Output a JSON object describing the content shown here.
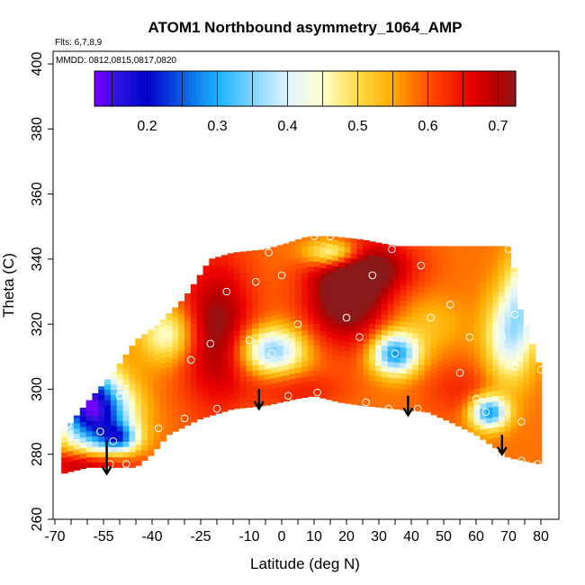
{
  "chart_data": {
    "type": "heatmap",
    "title": "ATOM1 Northbound asymmetry_1064_AMP",
    "subtitle_flights": "Flts: 6,7,8,9",
    "subtitle_dates": "MMDD: 0812,0815,0817,0820",
    "xlabel": "Latitude (deg N)",
    "ylabel": "Theta (C)",
    "xlim": [
      -72,
      85
    ],
    "ylim": [
      260,
      404
    ],
    "x_ticks": [
      -70,
      -55,
      -40,
      -25,
      -10,
      0,
      10,
      20,
      30,
      40,
      50,
      60,
      70,
      80
    ],
    "x_ticks_visible": [
      -70,
      -55,
      -40,
      -25,
      -10,
      0,
      10,
      20,
      30,
      40,
      50,
      60,
      70,
      80
    ],
    "x_minor_ticks": [
      -70,
      -65,
      -60,
      -55,
      -50,
      -45,
      -40,
      -35,
      -30,
      -25,
      -20,
      -15,
      -10,
      -5,
      0,
      5,
      10,
      15,
      20,
      25,
      30,
      35,
      40,
      45,
      50,
      55,
      60,
      65,
      70,
      75,
      80
    ],
    "y_ticks": [
      260,
      280,
      300,
      320,
      340,
      360,
      380,
      400
    ],
    "colorbar": {
      "range": [
        0.125,
        0.725
      ],
      "ticks": [
        0.2,
        0.3,
        0.4,
        0.5,
        0.6,
        0.7
      ],
      "tick_labels": [
        "0.2",
        "0.3",
        "0.4",
        "0.5",
        "0.6",
        "0.7"
      ],
      "segments": [
        0.2,
        0.3,
        0.4,
        0.5,
        0.6,
        0.7
      ],
      "colors": [
        "#7a00ff",
        "#1515c8",
        "#0000cc",
        "#0f6fe6",
        "#1ab2ff",
        "#7fd4ff",
        "#dff2ff",
        "#ffffcc",
        "#ffdd44",
        "#ffaa00",
        "#ff5500",
        "#ee0000",
        "#b20000",
        "#8a1a1a"
      ]
    },
    "region": {
      "top_boundary": [
        [
          -68,
          286
        ],
        [
          -60,
          296
        ],
        [
          -52,
          305
        ],
        [
          -45,
          315
        ],
        [
          -38,
          320
        ],
        [
          -30,
          328
        ],
        [
          -22,
          340
        ],
        [
          -15,
          342
        ],
        [
          -5,
          343
        ],
        [
          2,
          345
        ],
        [
          8,
          347
        ],
        [
          16,
          347
        ],
        [
          25,
          346
        ],
        [
          35,
          344
        ],
        [
          55,
          344
        ],
        [
          70,
          344
        ],
        [
          72,
          336
        ],
        [
          73,
          326
        ],
        [
          76,
          318
        ],
        [
          78,
          312
        ],
        [
          80,
          306
        ]
      ],
      "bottom_boundary": [
        [
          80,
          277
        ],
        [
          75,
          278
        ],
        [
          70,
          279
        ],
        [
          66,
          282
        ],
        [
          60,
          286
        ],
        [
          52,
          290
        ],
        [
          45,
          293
        ],
        [
          35,
          294
        ],
        [
          25,
          295
        ],
        [
          18,
          296
        ],
        [
          10,
          298
        ],
        [
          4,
          297
        ],
        [
          -5,
          295
        ],
        [
          -15,
          294
        ],
        [
          -25,
          291
        ],
        [
          -35,
          286
        ],
        [
          -40,
          280
        ],
        [
          -45,
          276
        ],
        [
          -52,
          276
        ],
        [
          -60,
          276
        ],
        [
          -68,
          274
        ]
      ]
    },
    "sample_points": [
      {
        "lat": -66,
        "theta": 289
      },
      {
        "lat": -56,
        "theta": 287
      },
      {
        "lat": -52,
        "theta": 284
      },
      {
        "lat": -50,
        "theta": 298
      },
      {
        "lat": -53,
        "theta": 277
      },
      {
        "lat": -48,
        "theta": 277
      },
      {
        "lat": -38,
        "theta": 288
      },
      {
        "lat": -30,
        "theta": 291
      },
      {
        "lat": -28,
        "theta": 309
      },
      {
        "lat": -22,
        "theta": 314
      },
      {
        "lat": -20,
        "theta": 294
      },
      {
        "lat": -17,
        "theta": 330
      },
      {
        "lat": -10,
        "theta": 315
      },
      {
        "lat": -8,
        "theta": 333
      },
      {
        "lat": -4,
        "theta": 342
      },
      {
        "lat": -3,
        "theta": 311
      },
      {
        "lat": 0,
        "theta": 335
      },
      {
        "lat": 2,
        "theta": 298
      },
      {
        "lat": 5,
        "theta": 320
      },
      {
        "lat": 10,
        "theta": 347
      },
      {
        "lat": 11,
        "theta": 299
      },
      {
        "lat": 15,
        "theta": 347
      },
      {
        "lat": 20,
        "theta": 322
      },
      {
        "lat": 24,
        "theta": 316
      },
      {
        "lat": 26,
        "theta": 296
      },
      {
        "lat": 28,
        "theta": 335
      },
      {
        "lat": 33,
        "theta": 294
      },
      {
        "lat": 34,
        "theta": 343
      },
      {
        "lat": 35,
        "theta": 311
      },
      {
        "lat": 42,
        "theta": 294
      },
      {
        "lat": 43,
        "theta": 338
      },
      {
        "lat": 46,
        "theta": 322
      },
      {
        "lat": 52,
        "theta": 326
      },
      {
        "lat": 55,
        "theta": 305
      },
      {
        "lat": 58,
        "theta": 316
      },
      {
        "lat": 60,
        "theta": 297
      },
      {
        "lat": 63,
        "theta": 293
      },
      {
        "lat": 68,
        "theta": 316
      },
      {
        "lat": 70,
        "theta": 343
      },
      {
        "lat": 72,
        "theta": 323
      },
      {
        "lat": 72,
        "theta": 307
      },
      {
        "lat": 74,
        "theta": 290
      },
      {
        "lat": 74,
        "theta": 278
      },
      {
        "lat": 79,
        "theta": 277
      },
      {
        "lat": 80,
        "theta": 306
      }
    ],
    "arrows": [
      {
        "lat": -54,
        "theta_top": 284,
        "theta_tip": 274
      },
      {
        "lat": -7,
        "theta_top": 300,
        "theta_tip": 294
      },
      {
        "lat": 39,
        "theta_top": 298,
        "theta_tip": 292
      },
      {
        "lat": 68,
        "theta_top": 286,
        "theta_tip": 280
      }
    ]
  }
}
